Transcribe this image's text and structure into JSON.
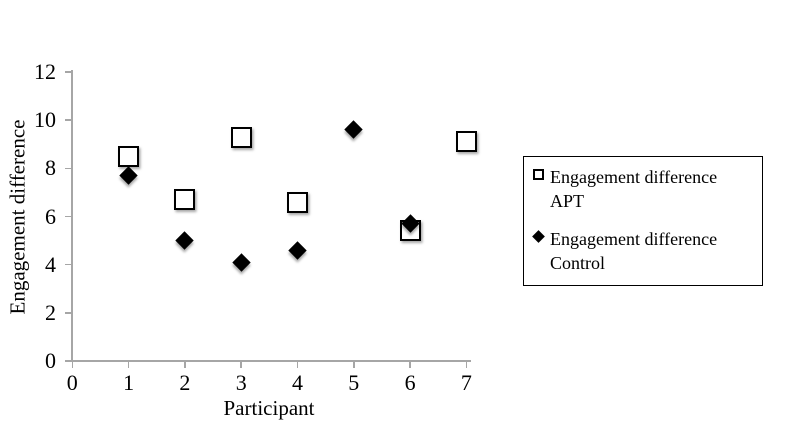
{
  "chart_data": {
    "type": "scatter",
    "title": "",
    "xlabel": "Participant",
    "ylabel": "Engagement difference",
    "xlim": [
      0,
      7
    ],
    "ylim": [
      0,
      12
    ],
    "x_ticks": [
      0,
      1,
      2,
      3,
      4,
      5,
      6,
      7
    ],
    "y_ticks": [
      0,
      2,
      4,
      6,
      8,
      10,
      12
    ],
    "grid": false,
    "legend_position": "right",
    "series": [
      {
        "name": "Engagement difference APT",
        "marker": "open-square",
        "fill_color": "#ffffff",
        "border_color": "#000000",
        "points": [
          {
            "x": 1,
            "y": 8.5
          },
          {
            "x": 2,
            "y": 6.7
          },
          {
            "x": 3,
            "y": 9.3
          },
          {
            "x": 4,
            "y": 6.6
          },
          {
            "x": 6,
            "y": 5.4
          },
          {
            "x": 7,
            "y": 9.1
          }
        ]
      },
      {
        "name": "Engagement difference Control",
        "marker": "filled-diamond",
        "fill_color": "#000000",
        "border_color": "#000000",
        "points": [
          {
            "x": 1,
            "y": 7.7
          },
          {
            "x": 2,
            "y": 5.0
          },
          {
            "x": 3,
            "y": 4.1
          },
          {
            "x": 4,
            "y": 4.6
          },
          {
            "x": 5,
            "y": 9.6
          },
          {
            "x": 6,
            "y": 5.7
          }
        ]
      }
    ],
    "colors": {
      "axis": "#a6a6a6",
      "text": "#000000",
      "background": "#ffffff"
    }
  }
}
